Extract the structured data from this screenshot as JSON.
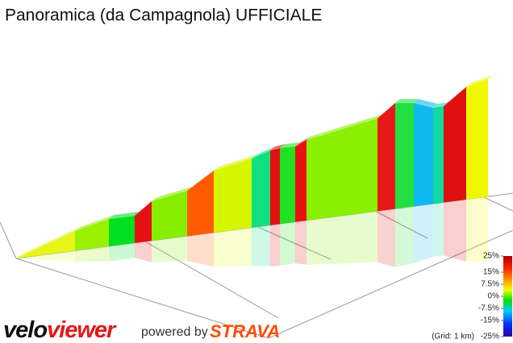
{
  "title": "Panoramica (da Campagnola) UFFICIALE",
  "legend": {
    "ticks": [
      {
        "value": 25,
        "label": "25%"
      },
      {
        "value": 15,
        "label": "15%"
      },
      {
        "value": 7.5,
        "label": "7.5%"
      },
      {
        "value": 0,
        "label": "0%"
      },
      {
        "value": -7.5,
        "label": "-7.5%"
      },
      {
        "value": -15,
        "label": "-15%"
      },
      {
        "value": -25,
        "label": "-25%"
      }
    ],
    "range": [
      -25,
      25
    ],
    "grid_note": "(Grid: 1 km)"
  },
  "logo": {
    "part1": "velo",
    "part2": "viewer"
  },
  "powered_by": "powered by",
  "strava": "STRAVA"
}
